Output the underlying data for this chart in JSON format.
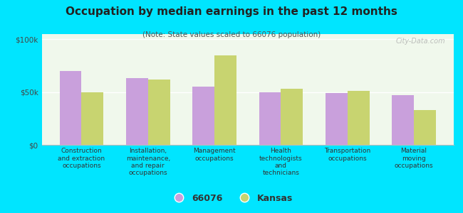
{
  "title": "Occupation by median earnings in the past 12 months",
  "subtitle": "(Note: State values scaled to 66076 population)",
  "categories": [
    "Construction\nand extraction\noccupations",
    "Installation,\nmaintenance,\nand repair\noccupations",
    "Management\noccupations",
    "Health\ntechnologists\nand\ntechnicians",
    "Transportation\noccupations",
    "Material\nmoving\noccupations"
  ],
  "values_66076": [
    70000,
    63000,
    55000,
    50000,
    49000,
    47000
  ],
  "values_kansas": [
    50000,
    62000,
    85000,
    53000,
    51000,
    33000
  ],
  "color_66076": "#c9a0dc",
  "color_kansas": "#c8d470",
  "background_outer": "#00e5ff",
  "background_inner": "#f0f8ec",
  "yticks": [
    0,
    50000,
    100000
  ],
  "ytick_labels": [
    "$0",
    "$50k",
    "$100k"
  ],
  "ylim": [
    0,
    105000
  ],
  "legend_label_66076": "66076",
  "legend_label_kansas": "Kansas",
  "bar_width": 0.33,
  "watermark": "City-Data.com"
}
